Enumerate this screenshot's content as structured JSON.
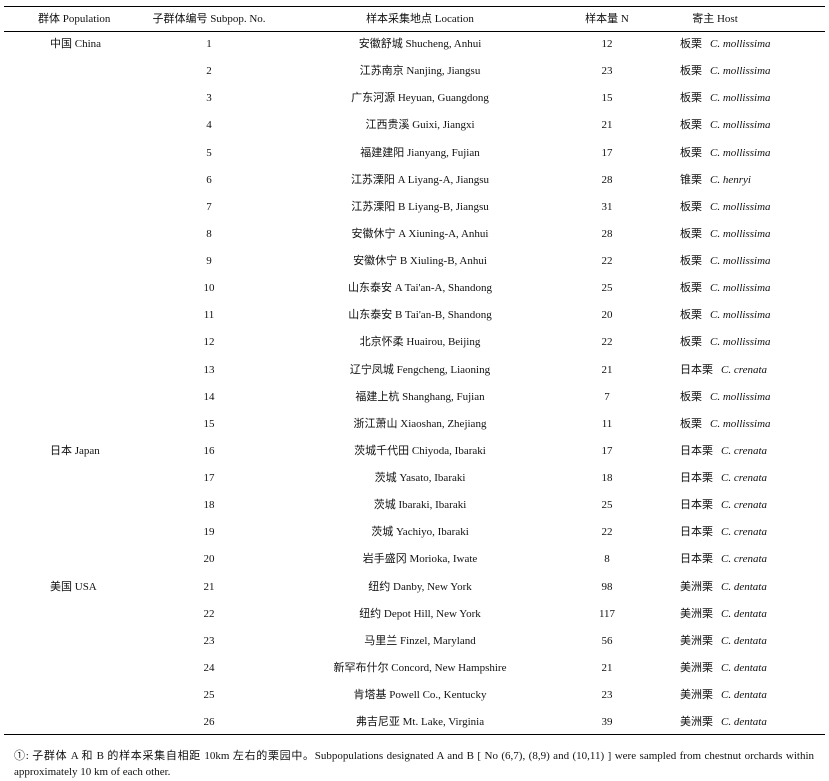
{
  "table": {
    "header": [
      "群体 Population",
      "子群体编号 Subpop. No.",
      "样本采集地点 Location",
      "样本量 N",
      "寄主 Host"
    ],
    "rows": [
      [
        "中国 China",
        1,
        "安徽舒城 Shucheng, Anhui",
        12,
        "板栗",
        "C. mollissima"
      ],
      [
        null,
        2,
        "江苏南京 Nanjing, Jiangsu",
        23,
        "板栗",
        "C. mollissima"
      ],
      [
        null,
        3,
        "广东河源 Heyuan, Guangdong",
        15,
        "板栗",
        "C. mollissima"
      ],
      [
        null,
        4,
        "江西贵溪 Guixi, Jiangxi",
        21,
        "板栗",
        "C. mollissima"
      ],
      [
        null,
        5,
        "福建建阳 Jianyang, Fujian",
        17,
        "板栗",
        "C. mollissima"
      ],
      [
        null,
        6,
        "江苏溧阳 A Liyang-A, Jiangsu",
        28,
        "锥栗",
        "C. henryi"
      ],
      [
        null,
        7,
        "江苏溧阳 B Liyang-B, Jiangsu",
        31,
        "板栗",
        "C. mollissima"
      ],
      [
        null,
        8,
        "安徽休宁 A Xiuning-A, Anhui",
        28,
        "板栗",
        "C. mollissima"
      ],
      [
        null,
        9,
        "安徽休宁 B Xiuling-B, Anhui",
        22,
        "板栗",
        "C. mollissima"
      ],
      [
        null,
        10,
        "山东泰安 A Tai'an-A, Shandong",
        25,
        "板栗",
        "C. mollissima"
      ],
      [
        null,
        11,
        "山东泰安 B Tai'an-B, Shandong",
        20,
        "板栗",
        "C. mollissima"
      ],
      [
        null,
        12,
        "北京怀柔 Huairou, Beijing",
        22,
        "板栗",
        "C. mollissima"
      ],
      [
        null,
        13,
        "辽宁凤城 Fengcheng, Liaoning",
        21,
        "日本栗",
        "C. crenata"
      ],
      [
        null,
        14,
        "福建上杭 Shanghang, Fujian",
        7,
        "板栗",
        "C. mollissima"
      ],
      [
        null,
        15,
        "浙江萧山 Xiaoshan, Zhejiang",
        11,
        "板栗",
        "C. mollissima"
      ],
      [
        "日本 Japan",
        16,
        "茨城千代田 Chiyoda, Ibaraki",
        17,
        "日本栗",
        "C. crenata"
      ],
      [
        null,
        17,
        "茨城 Yasato, Ibaraki",
        18,
        "日本栗",
        "C. crenata"
      ],
      [
        null,
        18,
        "茨城 Ibaraki, Ibaraki",
        25,
        "日本栗",
        "C. crenata"
      ],
      [
        null,
        19,
        "茨城 Yachiyo, Ibaraki",
        22,
        "日本栗",
        "C. crenata"
      ],
      [
        null,
        20,
        "岩手盛冈 Morioka, Iwate",
        8,
        "日本栗",
        "C. crenata"
      ],
      [
        "美国 USA",
        21,
        "纽约 Danby, New York",
        98,
        "美洲栗",
        "C. dentata"
      ],
      [
        null,
        22,
        "纽约 Depot Hill, New York",
        117,
        "美洲栗",
        "C. dentata"
      ],
      [
        null,
        23,
        "马里兰 Finzel, Maryland",
        56,
        "美洲栗",
        "C. dentata"
      ],
      [
        null,
        24,
        "新罕布什尔 Concord, New Hampshire",
        21,
        "美洲栗",
        "C. dentata"
      ],
      [
        null,
        25,
        "肯塔基 Powell Co., Kentucky",
        23,
        "美洲栗",
        "C. dentata"
      ],
      [
        null,
        26,
        "弗吉尼亚 Mt. Lake, Virginia",
        39,
        "美洲栗",
        "C. dentata"
      ]
    ],
    "footnote": "①: 子群体 A 和 B 的样本采集自相距 10km 左右的栗园中。Subpopulations designated A and B [ No (6,7), (8,9) and (10,11) ] were sampled from chestnut orchards within approximately 10 km of each other."
  }
}
